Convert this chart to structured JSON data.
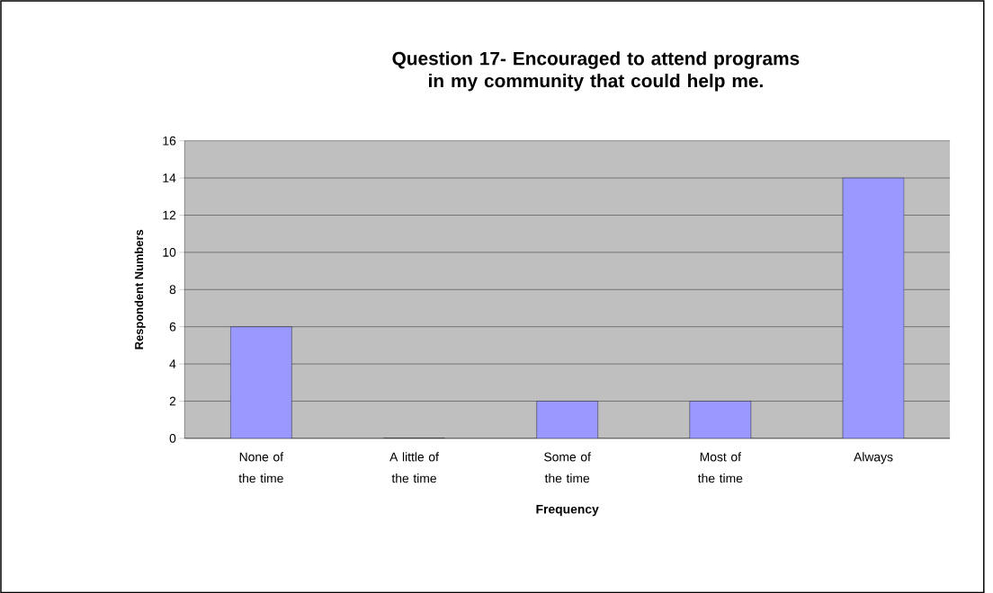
{
  "chart_data": {
    "type": "bar",
    "title": "Question 17- Encouraged to attend programs in my community that could help me.",
    "xlabel": "Frequency",
    "ylabel": "Respondent Numbers",
    "categories": [
      "None of the time",
      "A little of the time",
      "Some of the time",
      "Most of the time",
      "Always"
    ],
    "values": [
      6,
      0,
      2,
      2,
      14
    ],
    "color": "#9999ff",
    "ylim": [
      0,
      16
    ],
    "yticks": [
      0,
      2,
      4,
      6,
      8,
      10,
      12,
      14,
      16
    ],
    "grid": "y"
  }
}
